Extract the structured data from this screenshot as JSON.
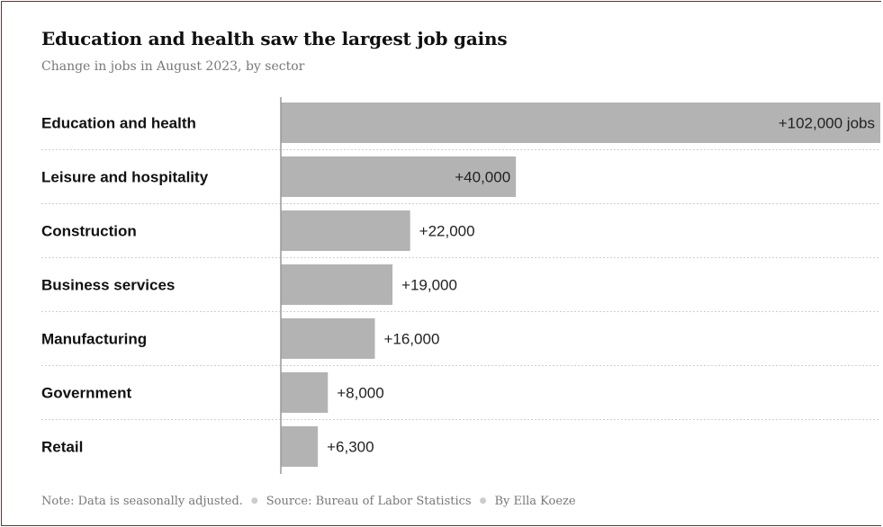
{
  "title": "Education and health saw the largest job gains",
  "subtitle": "Change in jobs in August 2023, by sector",
  "footer": {
    "note": "Note: Data is seasonally adjusted.",
    "source": "Source: Bureau of Labor Statistics",
    "byline": "By Ella Koeze"
  },
  "colors": {
    "bar": "#b3b3b3",
    "axis": "#999999",
    "gridline": "#d0d0d0",
    "border": "#a01c1c"
  },
  "chart_data": {
    "type": "bar",
    "orientation": "horizontal",
    "title": "Education and health saw the largest job gains",
    "subtitle": "Change in jobs in August 2023, by sector",
    "categories": [
      "Education and health",
      "Leisure and hospitality",
      "Construction",
      "Business services",
      "Manufacturing",
      "Government",
      "Retail"
    ],
    "values": [
      102000,
      40000,
      22000,
      19000,
      16000,
      8000,
      6300
    ],
    "value_labels": [
      "+102,000 jobs",
      "+40,000",
      "+22,000",
      "+19,000",
      "+16,000",
      "+8,000",
      "+6,300"
    ],
    "xlim": [
      0,
      102000
    ],
    "grid": false,
    "legend": "none"
  }
}
